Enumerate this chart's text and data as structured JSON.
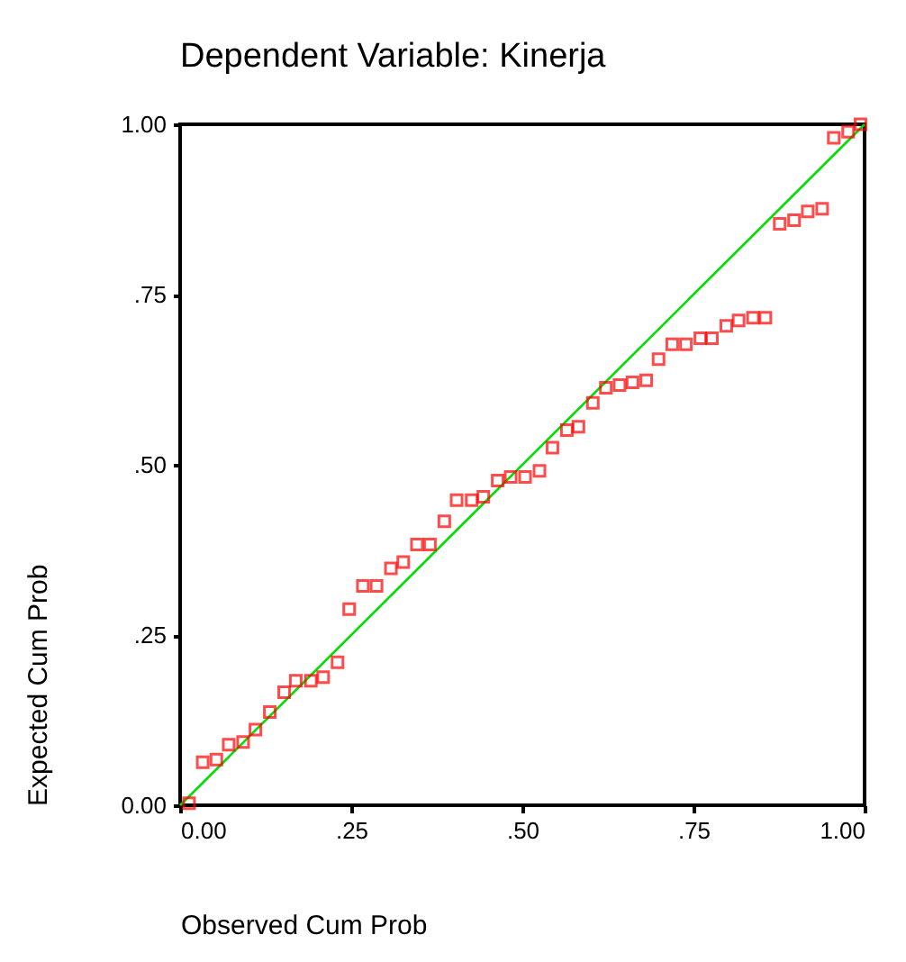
{
  "chart_data": {
    "type": "scatter",
    "title": "Dependent Variable: Kinerja",
    "xlabel": "Observed Cum Prob",
    "ylabel": "Expected Cum Prob",
    "xlim": [
      0,
      1
    ],
    "ylim": [
      0,
      1
    ],
    "xticks": [
      {
        "value": 0,
        "label": "0.00"
      },
      {
        "value": 0.25,
        "label": ".25"
      },
      {
        "value": 0.5,
        "label": ".50"
      },
      {
        "value": 0.75,
        "label": ".75"
      },
      {
        "value": 1,
        "label": "1.00"
      }
    ],
    "yticks": [
      {
        "value": 0,
        "label": "0.00"
      },
      {
        "value": 0.25,
        "label": ".25"
      },
      {
        "value": 0.5,
        "label": ".50"
      },
      {
        "value": 0.75,
        "label": ".75"
      },
      {
        "value": 1,
        "label": "1.00"
      }
    ],
    "grid": false,
    "series": [
      {
        "marker": "square",
        "color": "#ff0000",
        "x": [
          0.013,
          0.033,
          0.053,
          0.071,
          0.092,
          0.11,
          0.131,
          0.152,
          0.169,
          0.191,
          0.209,
          0.23,
          0.247,
          0.267,
          0.287,
          0.308,
          0.326,
          0.346,
          0.365,
          0.386,
          0.404,
          0.426,
          0.443,
          0.464,
          0.483,
          0.504,
          0.525,
          0.544,
          0.565,
          0.582,
          0.603,
          0.622,
          0.642,
          0.661,
          0.681,
          0.699,
          0.719,
          0.739,
          0.76,
          0.777,
          0.798,
          0.816,
          0.837,
          0.855,
          0.876,
          0.897,
          0.917,
          0.938,
          0.955,
          0.976,
          0.994
        ],
        "values": [
          0.003,
          0.063,
          0.067,
          0.089,
          0.093,
          0.111,
          0.137,
          0.166,
          0.183,
          0.183,
          0.188,
          0.21,
          0.288,
          0.322,
          0.322,
          0.348,
          0.357,
          0.383,
          0.383,
          0.417,
          0.448,
          0.448,
          0.453,
          0.477,
          0.482,
          0.482,
          0.491,
          0.525,
          0.551,
          0.556,
          0.591,
          0.613,
          0.617,
          0.621,
          0.624,
          0.655,
          0.677,
          0.677,
          0.686,
          0.686,
          0.704,
          0.712,
          0.716,
          0.716,
          0.854,
          0.859,
          0.872,
          0.876,
          0.98,
          0.989,
          1.0
        ]
      },
      {
        "type": "line",
        "color": "#00dd00",
        "x": [
          0,
          1
        ],
        "values": [
          0,
          1
        ]
      }
    ]
  }
}
